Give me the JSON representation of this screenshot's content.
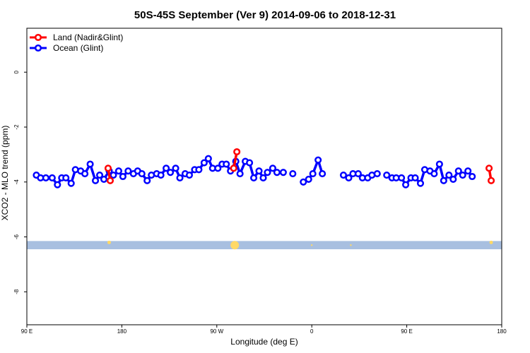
{
  "chart_data": {
    "type": "line",
    "title": "50S-45S September (Ver 9)   2014-09-06 to 2018-12-31",
    "xlabel": "Longitude (deg E)",
    "ylabel": "XCO2 - MLO trend (ppm)",
    "x_ticks": [
      {
        "value": 90,
        "label": "90 E"
      },
      {
        "value": 180,
        "label": "180"
      },
      {
        "value": 270,
        "label": "90 W"
      },
      {
        "value": 360,
        "label": "0"
      },
      {
        "value": 450,
        "label": "90 E"
      },
      {
        "value": 540,
        "label": "180"
      }
    ],
    "y_ticks": [
      0,
      -2,
      -4,
      -6,
      -8
    ],
    "xlim": [
      90,
      540
    ],
    "ylim": [
      -9.2,
      1.6
    ],
    "grid": false,
    "legend_position": "top-left",
    "colors": {
      "land": "#ff0000",
      "ocean": "#0000ff",
      "band": "#a8bfe0",
      "marker": "#ffd966"
    },
    "band": {
      "y_min": -6.45,
      "y_max": -6.15
    },
    "band_markers": [
      {
        "x": 168,
        "y": -6.2,
        "size": "small"
      },
      {
        "x": 287,
        "y": -6.3,
        "size": "large"
      },
      {
        "x": 530,
        "y": -6.2,
        "size": "small"
      },
      {
        "x": 360,
        "y": -6.3,
        "size": "tiny"
      },
      {
        "x": 397,
        "y": -6.3,
        "size": "tiny"
      }
    ],
    "series": [
      {
        "name": "Land (Nadir&Glint)",
        "color": "#ff0000",
        "segments": [
          [
            {
              "x": 167,
              "y": -3.5
            },
            {
              "x": 169,
              "y": -3.95
            }
          ],
          [
            {
              "x": 286,
              "y": -3.5
            },
            {
              "x": 289,
              "y": -2.9
            }
          ],
          [
            {
              "x": 528,
              "y": -3.5
            },
            {
              "x": 530,
              "y": -3.95
            }
          ]
        ]
      },
      {
        "name": "Ocean (Glint)",
        "color": "#0000ff",
        "segments": [
          [
            {
              "x": 99,
              "y": -3.75
            },
            {
              "x": 103,
              "y": -3.85
            },
            {
              "x": 108,
              "y": -3.85
            },
            {
              "x": 114,
              "y": -3.85
            },
            {
              "x": 119,
              "y": -4.1
            },
            {
              "x": 123,
              "y": -3.85
            },
            {
              "x": 127,
              "y": -3.85
            },
            {
              "x": 132,
              "y": -4.05
            },
            {
              "x": 136,
              "y": -3.55
            },
            {
              "x": 141,
              "y": -3.6
            },
            {
              "x": 145,
              "y": -3.7
            },
            {
              "x": 150,
              "y": -3.35
            },
            {
              "x": 155,
              "y": -3.95
            },
            {
              "x": 159,
              "y": -3.75
            },
            {
              "x": 163,
              "y": -3.9
            },
            {
              "x": 168,
              "y": -3.6
            },
            {
              "x": 172,
              "y": -3.75
            },
            {
              "x": 177,
              "y": -3.6
            },
            {
              "x": 181,
              "y": -3.8
            },
            {
              "x": 186,
              "y": -3.6
            },
            {
              "x": 191,
              "y": -3.7
            },
            {
              "x": 195,
              "y": -3.6
            },
            {
              "x": 199,
              "y": -3.7
            },
            {
              "x": 204,
              "y": -3.95
            },
            {
              "x": 208,
              "y": -3.75
            },
            {
              "x": 213,
              "y": -3.7
            },
            {
              "x": 217,
              "y": -3.75
            },
            {
              "x": 222,
              "y": -3.5
            },
            {
              "x": 226,
              "y": -3.65
            },
            {
              "x": 231,
              "y": -3.5
            },
            {
              "x": 235,
              "y": -3.85
            },
            {
              "x": 240,
              "y": -3.7
            },
            {
              "x": 244,
              "y": -3.75
            },
            {
              "x": 249,
              "y": -3.55
            },
            {
              "x": 253,
              "y": -3.55
            },
            {
              "x": 258,
              "y": -3.3
            },
            {
              "x": 262,
              "y": -3.15
            },
            {
              "x": 266,
              "y": -3.5
            },
            {
              "x": 271,
              "y": -3.5
            },
            {
              "x": 275,
              "y": -3.35
            },
            {
              "x": 279,
              "y": -3.35
            },
            {
              "x": 283,
              "y": -3.6
            },
            {
              "x": 288,
              "y": -3.25
            },
            {
              "x": 292,
              "y": -3.7
            },
            {
              "x": 297,
              "y": -3.25
            },
            {
              "x": 301,
              "y": -3.3
            },
            {
              "x": 305,
              "y": -3.85
            },
            {
              "x": 310,
              "y": -3.6
            },
            {
              "x": 314,
              "y": -3.85
            },
            {
              "x": 318,
              "y": -3.65
            },
            {
              "x": 323,
              "y": -3.5
            },
            {
              "x": 327,
              "y": -3.65
            },
            {
              "x": 333,
              "y": -3.65
            }
          ],
          [
            {
              "x": 342,
              "y": -3.7
            }
          ],
          [
            {
              "x": 352,
              "y": -4.0
            },
            {
              "x": 357,
              "y": -3.9
            },
            {
              "x": 361,
              "y": -3.7
            },
            {
              "x": 366,
              "y": -3.2
            },
            {
              "x": 370,
              "y": -3.7
            }
          ],
          [
            {
              "x": 390,
              "y": -3.75
            },
            {
              "x": 395,
              "y": -3.85
            },
            {
              "x": 399,
              "y": -3.7
            },
            {
              "x": 404,
              "y": -3.7
            },
            {
              "x": 408,
              "y": -3.85
            },
            {
              "x": 413,
              "y": -3.85
            },
            {
              "x": 417,
              "y": -3.75
            },
            {
              "x": 422,
              "y": -3.7
            }
          ],
          [
            {
              "x": 431,
              "y": -3.75
            },
            {
              "x": 436,
              "y": -3.85
            },
            {
              "x": 440,
              "y": -3.85
            },
            {
              "x": 445,
              "y": -3.85
            },
            {
              "x": 449,
              "y": -4.1
            },
            {
              "x": 454,
              "y": -3.85
            },
            {
              "x": 458,
              "y": -3.85
            },
            {
              "x": 463,
              "y": -4.05
            },
            {
              "x": 467,
              "y": -3.55
            },
            {
              "x": 472,
              "y": -3.6
            },
            {
              "x": 476,
              "y": -3.7
            },
            {
              "x": 481,
              "y": -3.35
            },
            {
              "x": 485,
              "y": -3.95
            },
            {
              "x": 490,
              "y": -3.75
            },
            {
              "x": 494,
              "y": -3.9
            },
            {
              "x": 499,
              "y": -3.6
            },
            {
              "x": 503,
              "y": -3.75
            },
            {
              "x": 508,
              "y": -3.6
            },
            {
              "x": 512,
              "y": -3.8
            }
          ]
        ]
      }
    ],
    "legend": [
      {
        "label": "Land (Nadir&Glint)",
        "color": "#ff0000"
      },
      {
        "label": "Ocean (Glint)",
        "color": "#0000ff"
      }
    ]
  }
}
